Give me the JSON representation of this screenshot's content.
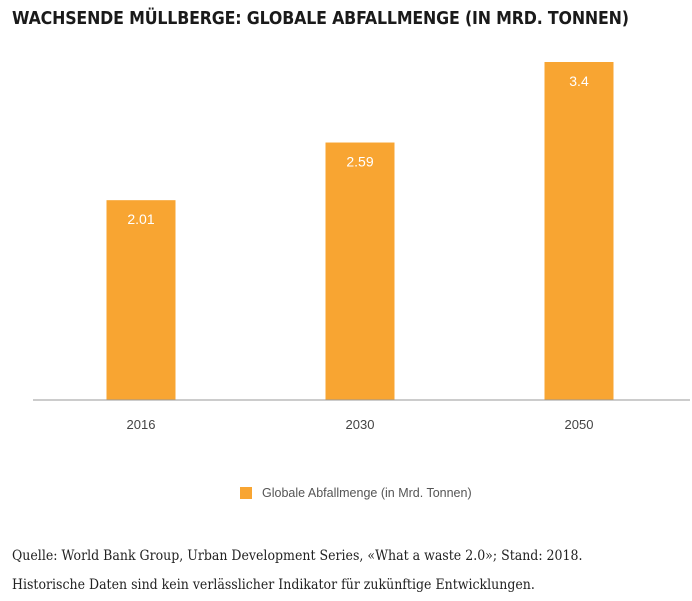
{
  "chart_data": {
    "type": "bar",
    "title": "WACHSENDE MÜLLBERGE: GLOBALE ABFALLMENGE (IN MRD. TONNEN)",
    "categories": [
      "2016",
      "2030",
      "2050"
    ],
    "series": [
      {
        "name": "Globale Abfallmenge (in Mrd. Tonnen)",
        "values": [
          2.01,
          2.59,
          3.4
        ]
      }
    ],
    "data_labels": [
      "2.01",
      "2.59",
      "3.4"
    ],
    "ylim": [
      0,
      3.4
    ],
    "grid": false,
    "legend_position": "bottom",
    "bar_color": "#f8a532",
    "axis_color": "#999999"
  },
  "source": "Quelle: World Bank Group, Urban Development Series, «What a waste 2.0»; Stand: 2018.",
  "disclaimer": "Historische Daten sind kein verlässlicher Indikator für zukünftige Entwicklungen."
}
